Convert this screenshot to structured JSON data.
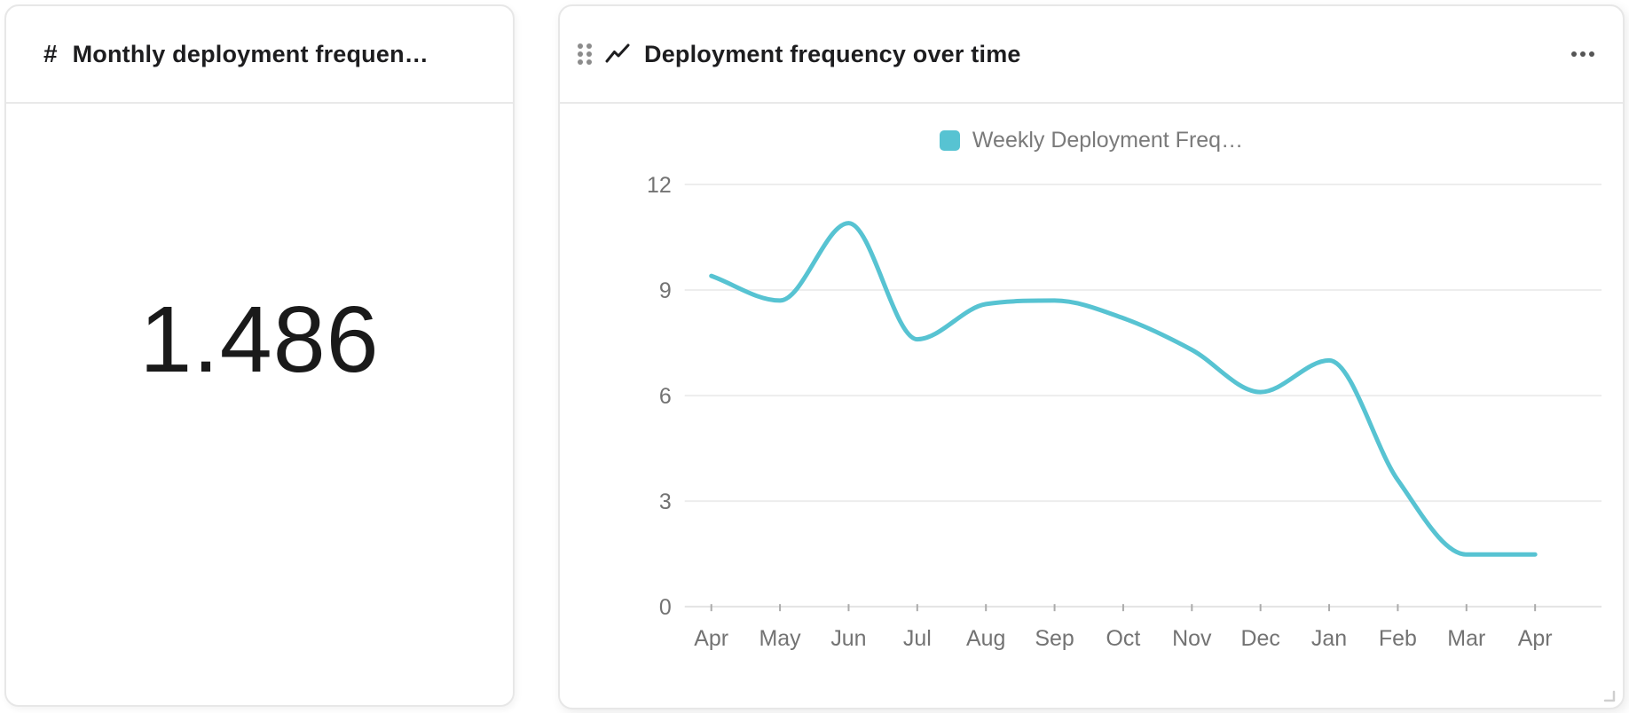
{
  "metric_widget": {
    "type_icon": "#",
    "title": "Monthly deployment frequen…",
    "value": "1.486"
  },
  "chart_widget": {
    "title": "Deployment frequency over time",
    "legend": "Weekly Deployment Freq…"
  },
  "chart_data": {
    "type": "line",
    "title": "Deployment frequency over time",
    "legend_entries": [
      "Weekly Deployment Freq…"
    ],
    "legend_position": "top",
    "categories": [
      "Apr",
      "May",
      "Jun",
      "Jul",
      "Aug",
      "Sep",
      "Oct",
      "Nov",
      "Dec",
      "Jan",
      "Feb",
      "Mar",
      "Apr"
    ],
    "series": [
      {
        "name": "Weekly Deployment Frequency",
        "values": [
          9.4,
          8.7,
          10.9,
          7.6,
          8.6,
          8.7,
          8.2,
          7.3,
          6.1,
          7.0,
          3.6,
          1.486,
          1.486
        ]
      }
    ],
    "xlabel": "",
    "ylabel": "",
    "ylim": [
      0,
      12
    ],
    "yticks": [
      0,
      3,
      6,
      9,
      12
    ],
    "grid": true,
    "smooth": true,
    "line_color": "#57C3D2",
    "axis_label_color": "#737373",
    "grid_color": "#ededed",
    "tick_color": "#ababab"
  }
}
